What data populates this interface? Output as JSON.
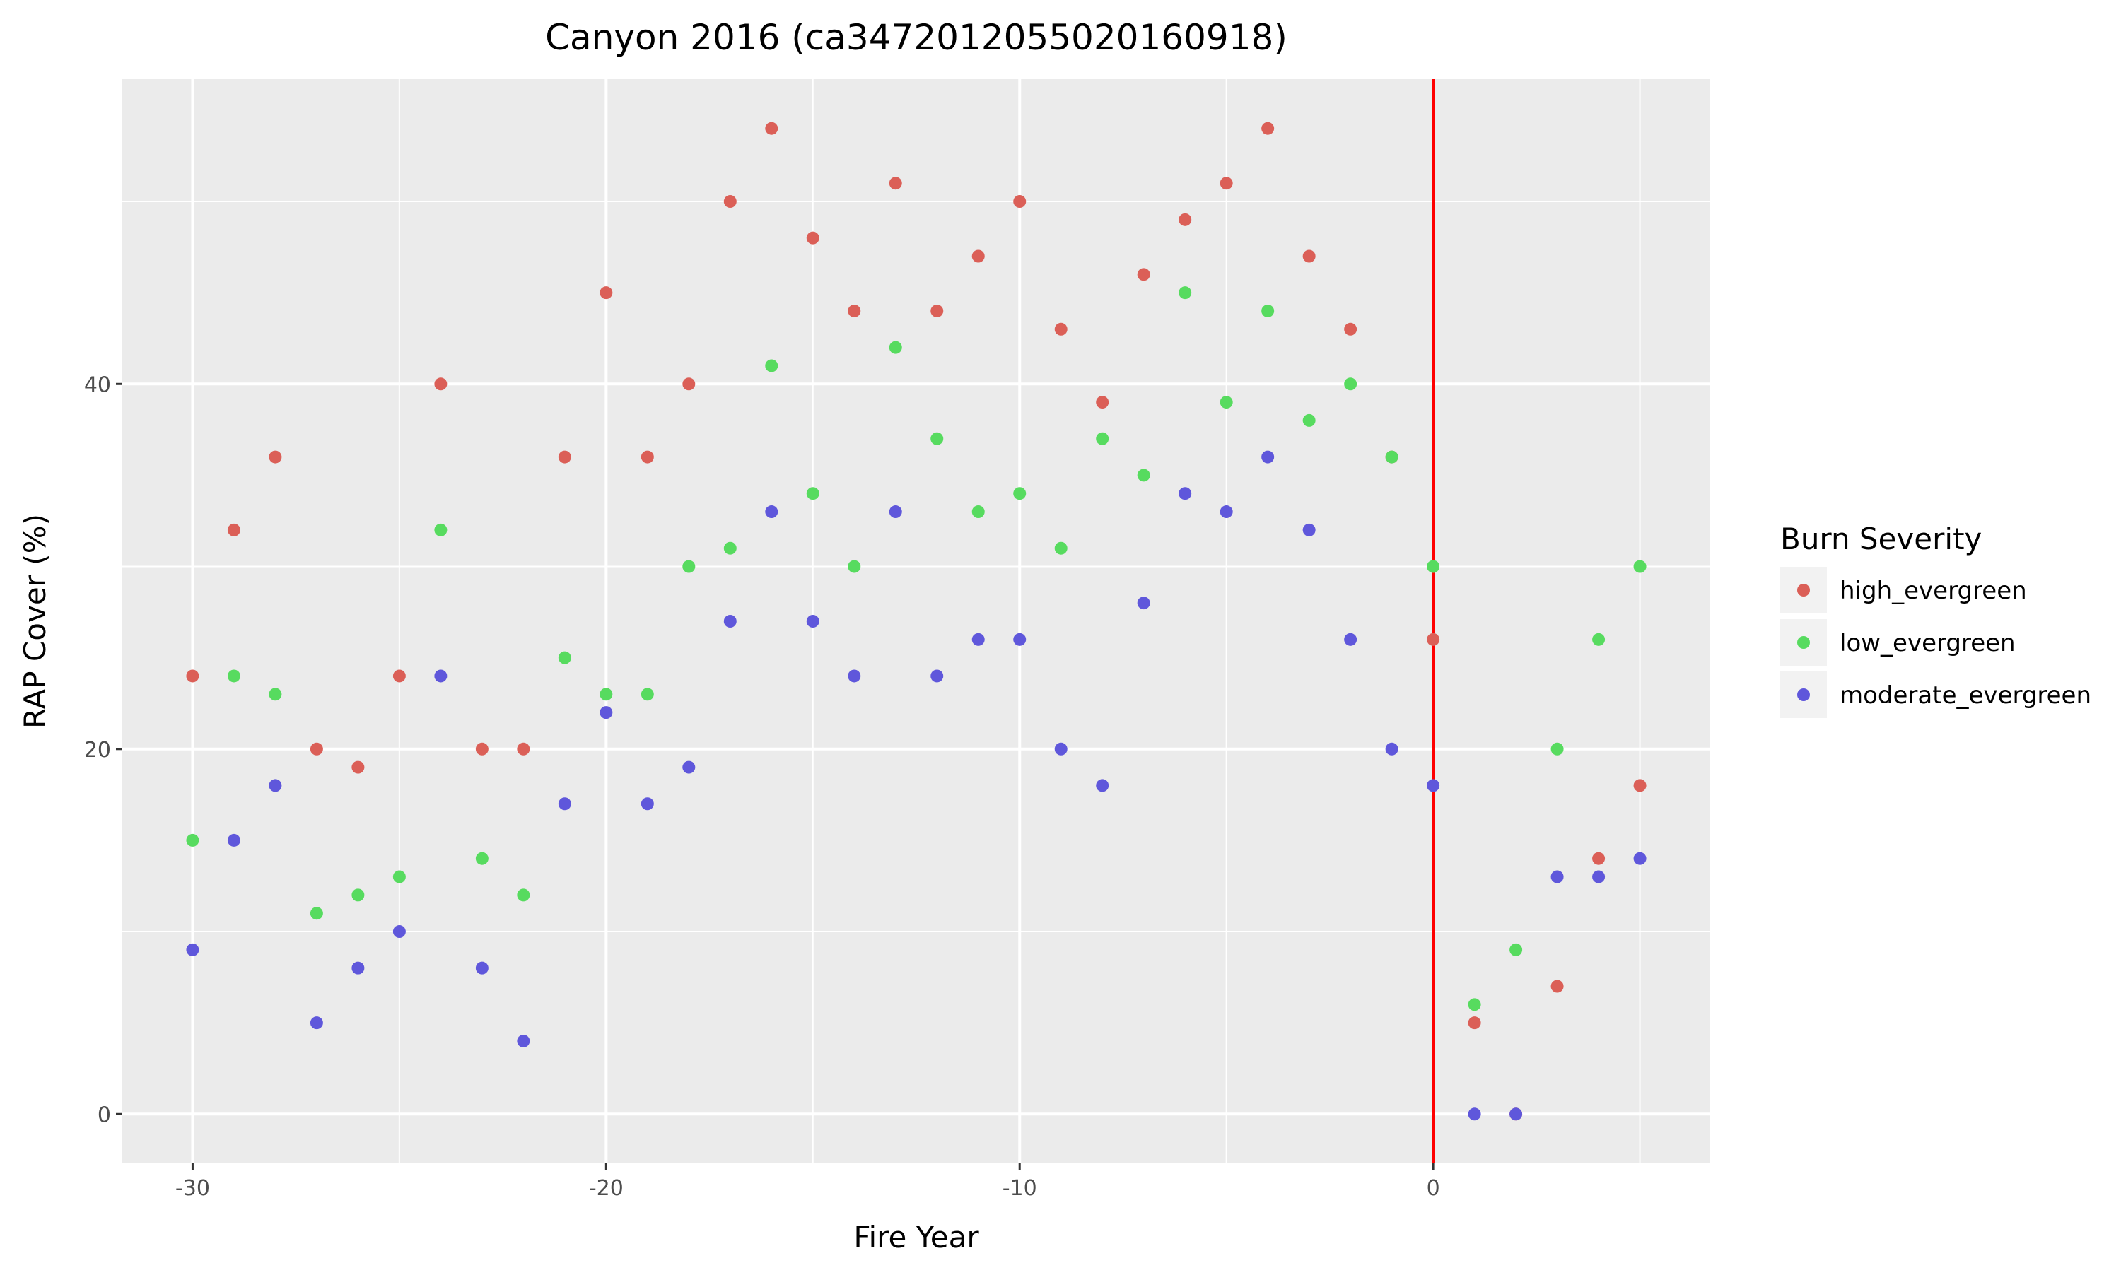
{
  "chart_data": {
    "type": "scatter",
    "title": "Canyon 2016 (ca3472012055020160918)",
    "xlabel": "Fire Year",
    "ylabel": "RAP Cover (%)",
    "xlim": [
      -31.7,
      6.7
    ],
    "ylim": [
      -2.7,
      56.7
    ],
    "x_ticks": [
      -30,
      -20,
      -10,
      0
    ],
    "y_ticks": [
      0,
      20,
      40
    ],
    "grid": true,
    "vline": {
      "x": 0,
      "color": "#ff0000"
    },
    "legend": {
      "title": "Burn Severity",
      "placement": "right"
    },
    "x": [
      -30,
      -29,
      -28,
      -27,
      -26,
      -25,
      -24,
      -23,
      -22,
      -21,
      -20,
      -19,
      -18,
      -17,
      -16,
      -15,
      -14,
      -13,
      -12,
      -11,
      -10,
      -9,
      -8,
      -7,
      -6,
      -5,
      -4,
      -3,
      -2,
      -1,
      0,
      1,
      2,
      3,
      4,
      5
    ],
    "series": [
      {
        "name": "high_evergreen",
        "color": "#db5f57",
        "values": [
          24,
          32,
          36,
          20,
          19,
          24,
          40,
          20,
          20,
          36,
          45,
          36,
          40,
          50,
          54,
          48,
          44,
          51,
          44,
          47,
          50,
          43,
          39,
          46,
          49,
          51,
          54,
          47,
          43,
          36,
          26,
          5,
          0,
          7,
          14,
          18
        ]
      },
      {
        "name": "low_evergreen",
        "color": "#57db5f",
        "values": [
          15,
          24,
          23,
          11,
          12,
          13,
          32,
          14,
          12,
          25,
          23,
          23,
          30,
          31,
          41,
          34,
          30,
          42,
          37,
          33,
          34,
          31,
          37,
          35,
          45,
          39,
          44,
          38,
          40,
          36,
          30,
          6,
          9,
          20,
          26,
          30
        ]
      },
      {
        "name": "moderate_evergreen",
        "color": "#5f57db",
        "values": [
          9,
          15,
          18,
          5,
          8,
          10,
          24,
          8,
          4,
          17,
          22,
          17,
          19,
          27,
          33,
          27,
          24,
          33,
          24,
          26,
          26,
          20,
          18,
          28,
          34,
          33,
          36,
          32,
          26,
          20,
          18,
          0,
          0,
          13,
          13,
          14
        ]
      }
    ]
  }
}
